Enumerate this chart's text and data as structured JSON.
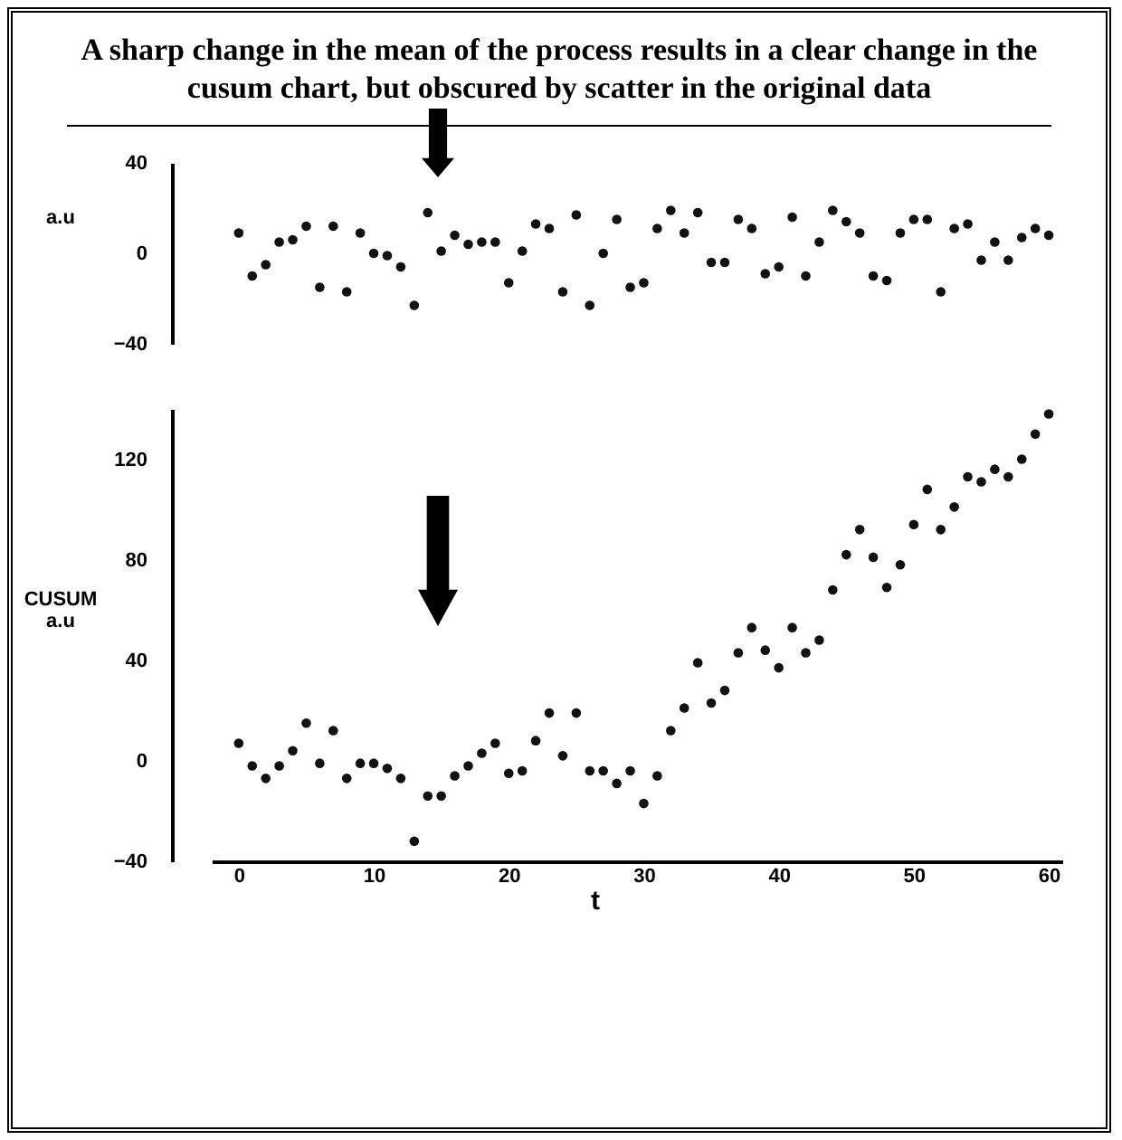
{
  "chart_data": [
    {
      "type": "scatter",
      "title": "A sharp change in the mean of the process results in a clear change in the cusum chart, but obscured by scatter in the original data",
      "ylabel": "a.u",
      "marker": "circle",
      "tick_labels": "y",
      "ylim": [
        -40,
        40
      ],
      "yticks": [
        40,
        0,
        -40
      ],
      "x": [
        0,
        1,
        2,
        3,
        4,
        5,
        6,
        7,
        8,
        9,
        10,
        11,
        12,
        13,
        14,
        15,
        16,
        17,
        18,
        19,
        20,
        21,
        22,
        23,
        24,
        25,
        26,
        27,
        28,
        29,
        30,
        31,
        32,
        33,
        34,
        35,
        36,
        37,
        38,
        39,
        40,
        41,
        42,
        43,
        44,
        45,
        46,
        47,
        48,
        49,
        50,
        51,
        52,
        53,
        54,
        55,
        56,
        57,
        58,
        59,
        60
      ],
      "series": [
        {
          "color": "#111111",
          "values": [
            9,
            -10,
            -5,
            5,
            6,
            12,
            -15,
            12,
            -17,
            9,
            0,
            -1,
            -6,
            -23,
            18,
            1,
            8,
            4,
            5,
            5,
            -13,
            1,
            13,
            11,
            -17,
            17,
            -23,
            0,
            15,
            -15,
            -13,
            11,
            19,
            9,
            18,
            -4,
            -4,
            15,
            11,
            -9,
            -6,
            16,
            -10,
            5,
            19,
            14,
            9,
            -10,
            -12,
            9,
            15,
            15,
            -17,
            11,
            13,
            -3,
            5,
            -3,
            7,
            11,
            8
          ]
        }
      ]
    },
    {
      "type": "scatter",
      "xlabel": "t",
      "ylabel": "CUSUM\na.u",
      "marker": "circle",
      "xlim": [
        -2,
        61
      ],
      "xticks": [
        0,
        10,
        20,
        30,
        40,
        50,
        60
      ],
      "ylim": [
        -40,
        140
      ],
      "yticks": [
        -40,
        0,
        40,
        80,
        120
      ],
      "x": [
        0,
        1,
        2,
        3,
        4,
        5,
        6,
        7,
        8,
        9,
        10,
        11,
        12,
        13,
        14,
        15,
        16,
        17,
        18,
        19,
        20,
        21,
        22,
        23,
        24,
        25,
        26,
        27,
        28,
        29,
        30,
        31,
        32,
        33,
        34,
        35,
        36,
        37,
        38,
        39,
        40,
        41,
        42,
        43,
        44,
        45,
        46,
        47,
        48,
        49,
        50,
        51,
        52,
        53,
        54,
        55,
        56,
        57,
        58,
        59,
        60
      ],
      "series": [
        {
          "color": "#111111",
          "values": [
            7,
            -2,
            -7,
            -2,
            4,
            15,
            -1,
            12,
            -7,
            -1,
            -1,
            -3,
            -7,
            -32,
            -14,
            -14,
            -6,
            -2,
            3,
            7,
            -5,
            -4,
            8,
            19,
            2,
            19,
            -4,
            -4,
            -9,
            -4,
            -17,
            -6,
            12,
            21,
            39,
            23,
            28,
            43,
            53,
            44,
            37,
            53,
            43,
            48,
            68,
            82,
            92,
            81,
            69,
            78,
            94,
            108,
            92,
            101,
            113,
            111,
            116,
            113,
            120,
            130,
            138
          ]
        }
      ]
    }
  ]
}
